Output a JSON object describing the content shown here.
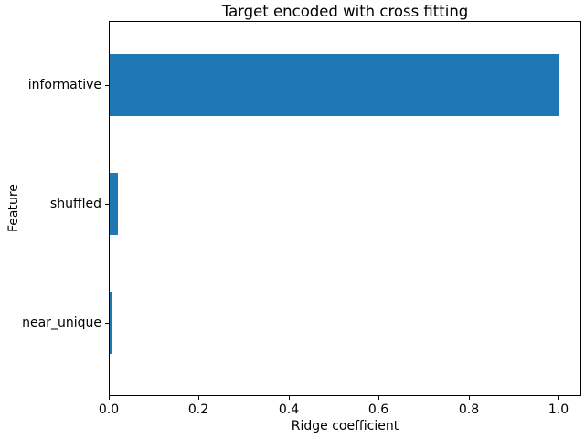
{
  "chart_data": {
    "type": "bar",
    "orientation": "horizontal",
    "title": "Target encoded with cross fitting",
    "xlabel": "Ridge coefficient",
    "ylabel": "Feature",
    "categories": [
      "informative",
      "shuffled",
      "near_unique"
    ],
    "values": [
      1.0,
      0.018,
      0.005
    ],
    "bar_color": "#1f77b4",
    "xlim": [
      0,
      1.05
    ],
    "xticks": [
      0.0,
      0.2,
      0.4,
      0.6,
      0.8,
      1.0
    ],
    "xtick_labels": [
      "0.0",
      "0.2",
      "0.4",
      "0.6",
      "0.8",
      "1.0"
    ],
    "grid": false,
    "legend": false,
    "background_color": "#ffffff",
    "spine_color": "#000000",
    "text_color": "#000000"
  }
}
